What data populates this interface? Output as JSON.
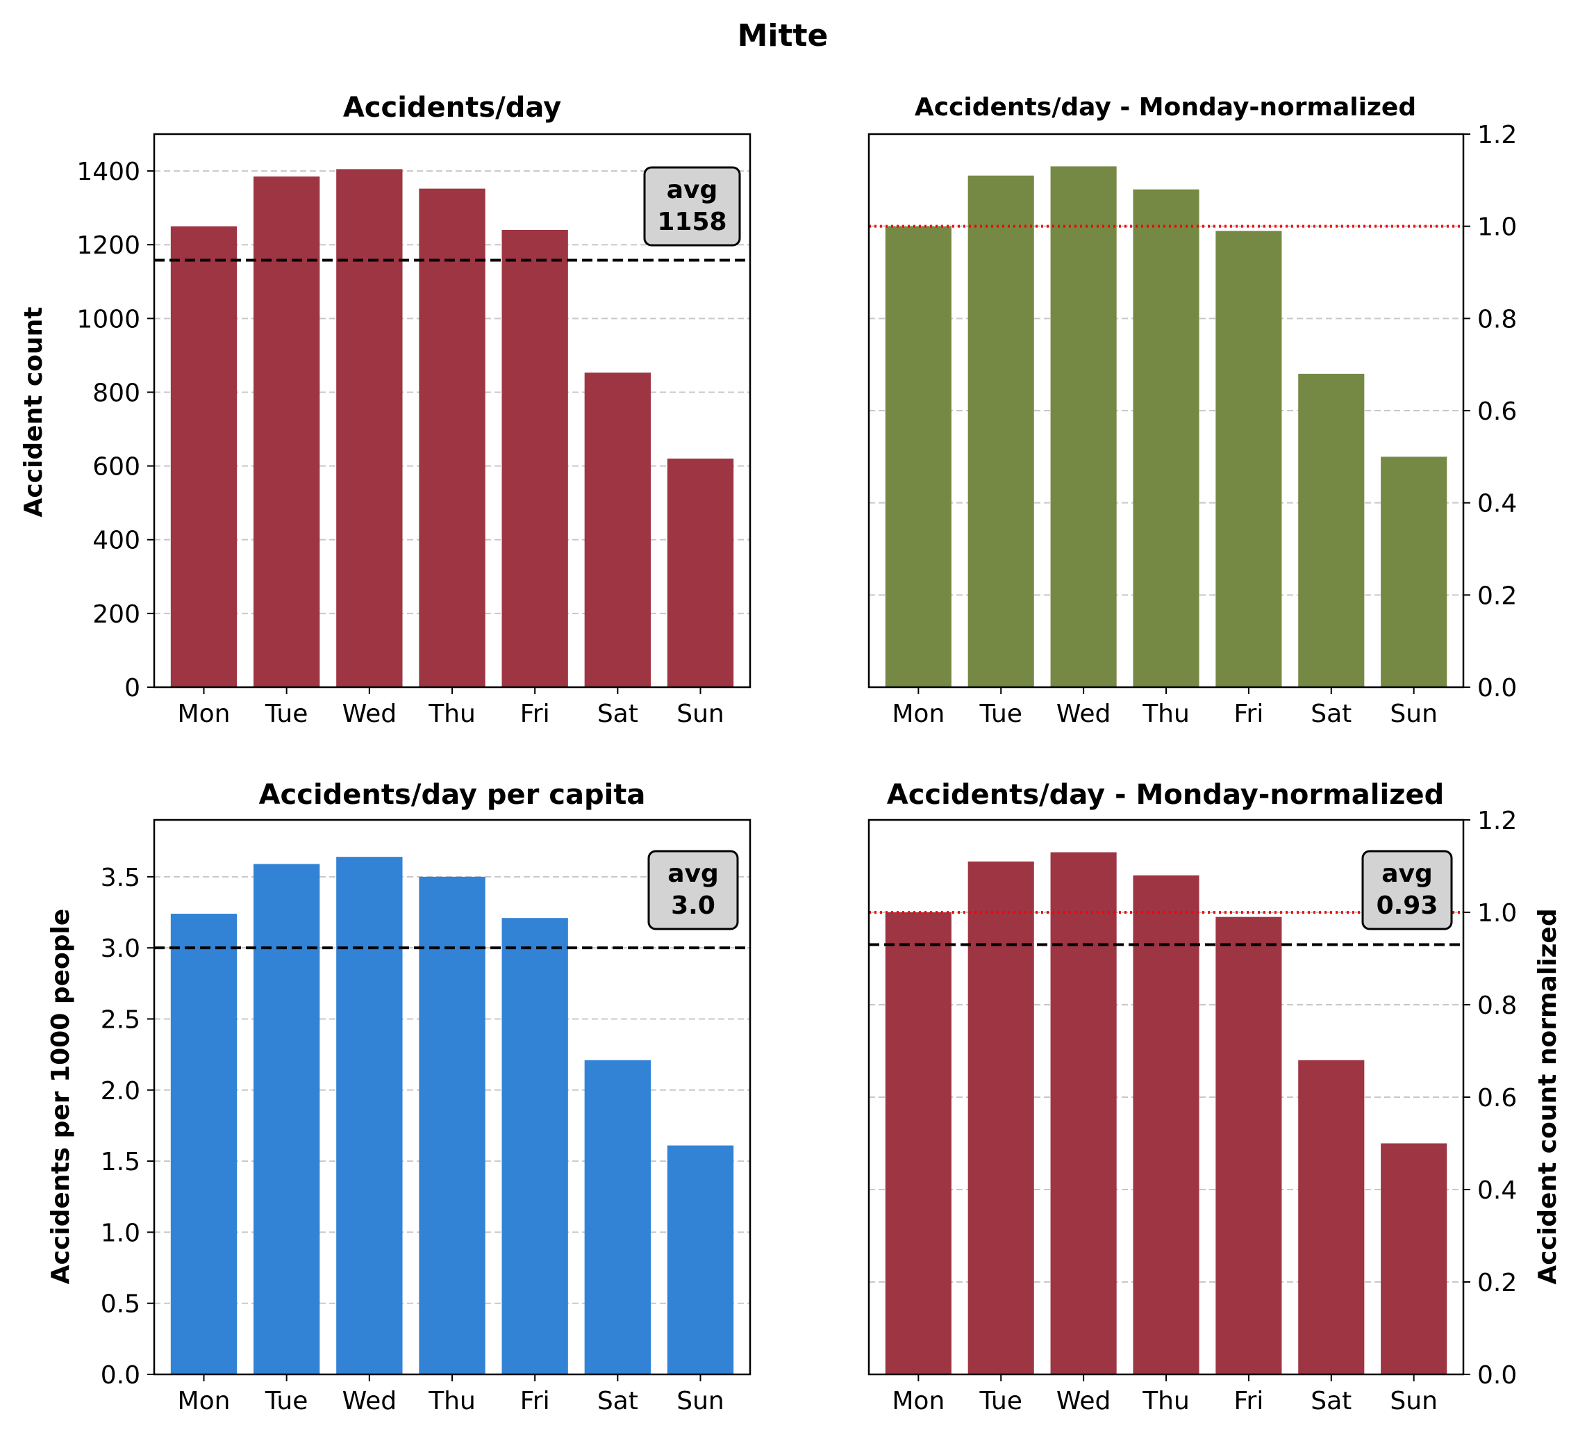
{
  "figure": {
    "title": "Mitte"
  },
  "chart_data": [
    {
      "type": "bar",
      "title": "Accidents/day",
      "categories": [
        "Mon",
        "Tue",
        "Wed",
        "Thu",
        "Fri",
        "Sat",
        "Sun"
      ],
      "values": [
        1250,
        1385,
        1405,
        1352,
        1240,
        853,
        620
      ],
      "xlabel": "",
      "ylabel": "Accident count",
      "ylim": [
        0,
        1500
      ],
      "yticks": [
        0,
        200,
        400,
        600,
        800,
        1000,
        1200,
        1400
      ],
      "ytick_labels": [
        "0",
        "200",
        "400",
        "600",
        "800",
        "1000",
        "1200",
        "1400"
      ],
      "yaxis_side": "left",
      "bar_color": "#9e3543",
      "grid": "y dashed",
      "reference_lines": [
        {
          "y": 1158,
          "style": "dashed",
          "color": "#000000"
        }
      ],
      "annotation": {
        "line1": "avg",
        "line2": "1158",
        "position": "top-right"
      }
    },
    {
      "type": "bar",
      "title": "Accidents/day - Monday-normalized",
      "categories": [
        "Mon",
        "Tue",
        "Wed",
        "Thu",
        "Fri",
        "Sat",
        "Sun"
      ],
      "values": [
        1.0,
        1.11,
        1.13,
        1.08,
        0.99,
        0.68,
        0.5
      ],
      "xlabel": "",
      "ylabel": "",
      "ylim": [
        0,
        1.2
      ],
      "yticks": [
        0,
        0.2,
        0.4,
        0.6,
        0.8,
        1.0,
        1.2
      ],
      "ytick_labels": [
        "0.0",
        "0.2",
        "0.4",
        "0.6",
        "0.8",
        "1.0",
        "1.2"
      ],
      "yaxis_side": "right",
      "bar_color": "#758944",
      "grid": "y dashed",
      "reference_lines": [
        {
          "y": 1.0,
          "style": "dotted",
          "color": "#ff0000"
        }
      ]
    },
    {
      "type": "bar",
      "title": "Accidents/day per capita",
      "categories": [
        "Mon",
        "Tue",
        "Wed",
        "Thu",
        "Fri",
        "Sat",
        "Sun"
      ],
      "values": [
        3.24,
        3.59,
        3.64,
        3.5,
        3.21,
        2.21,
        1.61
      ],
      "xlabel": "",
      "ylabel": "Accidents per 1000 people",
      "ylim": [
        0,
        3.9
      ],
      "yticks": [
        0,
        0.5,
        1.0,
        1.5,
        2.0,
        2.5,
        3.0,
        3.5
      ],
      "ytick_labels": [
        "0.0",
        "0.5",
        "1.0",
        "1.5",
        "2.0",
        "2.5",
        "3.0",
        "3.5"
      ],
      "yaxis_side": "left",
      "bar_color": "#3282d5",
      "grid": "y dashed",
      "reference_lines": [
        {
          "y": 3.0,
          "style": "dashed",
          "color": "#000000"
        }
      ],
      "annotation": {
        "line1": "avg",
        "line2": "3.0",
        "position": "top-right"
      }
    },
    {
      "type": "bar",
      "title": "Accidents/day - Monday-normalized",
      "categories": [
        "Mon",
        "Tue",
        "Wed",
        "Thu",
        "Fri",
        "Sat",
        "Sun"
      ],
      "values": [
        1.0,
        1.11,
        1.13,
        1.08,
        0.99,
        0.68,
        0.5
      ],
      "xlabel": "",
      "ylabel": "Accident count normalized",
      "ylim": [
        0,
        1.2
      ],
      "yticks": [
        0,
        0.2,
        0.4,
        0.6,
        0.8,
        1.0,
        1.2
      ],
      "ytick_labels": [
        "0.0",
        "0.2",
        "0.4",
        "0.6",
        "0.8",
        "1.0",
        "1.2"
      ],
      "yaxis_side": "right",
      "bar_color": "#9e3543",
      "grid": "y dashed",
      "reference_lines": [
        {
          "y": 1.0,
          "style": "dotted",
          "color": "#ff0000"
        },
        {
          "y": 0.93,
          "style": "dashed",
          "color": "#000000"
        }
      ],
      "annotation": {
        "line1": "avg",
        "line2": "0.93",
        "position": "top-right"
      }
    }
  ]
}
